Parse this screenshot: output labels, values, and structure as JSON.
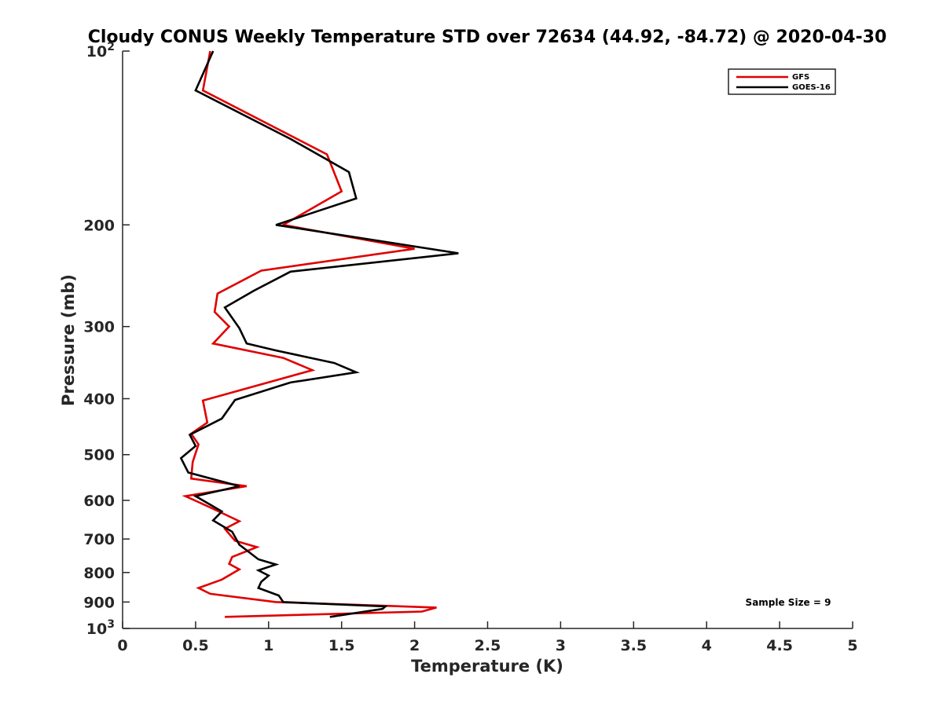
{
  "chart_data": {
    "type": "line",
    "title": "Cloudy CONUS Weekly Temperature STD over 72634 (44.92, -84.72) @ 2020-04-30",
    "xlabel": "Temperature (K)",
    "ylabel": "Pressure (mb)",
    "xlim": [
      0,
      5
    ],
    "ylim": [
      100,
      1000
    ],
    "y_scale": "log",
    "y_reversed": true,
    "x_ticks": [
      "0",
      "0.5",
      "1",
      "1.5",
      "2",
      "2.5",
      "3",
      "3.5",
      "4",
      "4.5",
      "5"
    ],
    "x_tick_values": [
      0,
      0.5,
      1,
      1.5,
      2,
      2.5,
      3,
      3.5,
      4,
      4.5,
      5
    ],
    "y_ticks": [
      {
        "value": 100,
        "base": "10",
        "exp": "2"
      },
      {
        "value": 200,
        "label": "200"
      },
      {
        "value": 300,
        "label": "300"
      },
      {
        "value": 400,
        "label": "400"
      },
      {
        "value": 500,
        "label": "500"
      },
      {
        "value": 600,
        "label": "600"
      },
      {
        "value": 700,
        "label": "700"
      },
      {
        "value": 800,
        "label": "800"
      },
      {
        "value": 900,
        "label": "900"
      },
      {
        "value": 1000,
        "base": "10",
        "exp": "3"
      }
    ],
    "legend_position": "top-right",
    "grid": false,
    "annotation": "Sample Size = 9",
    "series": [
      {
        "name": "GFS",
        "color": "#e00000",
        "points": [
          [
            0.6,
            100
          ],
          [
            0.55,
            117
          ],
          [
            1.4,
            151
          ],
          [
            1.5,
            175
          ],
          [
            1.1,
            200
          ],
          [
            2.0,
            220
          ],
          [
            0.95,
            240
          ],
          [
            0.65,
            263
          ],
          [
            0.63,
            283
          ],
          [
            0.73,
            300
          ],
          [
            0.62,
            321
          ],
          [
            1.1,
            340
          ],
          [
            1.3,
            357
          ],
          [
            0.55,
            403
          ],
          [
            0.58,
            440
          ],
          [
            0.47,
            460
          ],
          [
            0.52,
            480
          ],
          [
            0.48,
            515
          ],
          [
            0.47,
            550
          ],
          [
            0.85,
            567
          ],
          [
            0.43,
            590
          ],
          [
            0.6,
            617
          ],
          [
            0.8,
            652
          ],
          [
            0.7,
            672
          ],
          [
            0.77,
            705
          ],
          [
            0.92,
            723
          ],
          [
            0.75,
            752
          ],
          [
            0.73,
            773
          ],
          [
            0.8,
            790
          ],
          [
            0.68,
            823
          ],
          [
            0.52,
            851
          ],
          [
            0.6,
            871
          ],
          [
            1.05,
            900
          ],
          [
            2.15,
            920
          ],
          [
            2.05,
            935
          ],
          [
            0.7,
            955
          ]
        ]
      },
      {
        "name": "GOES-16",
        "color": "#000000",
        "points": [
          [
            0.62,
            100
          ],
          [
            0.5,
            117
          ],
          [
            1.15,
            142
          ],
          [
            1.55,
            162
          ],
          [
            1.6,
            180
          ],
          [
            1.05,
            200
          ],
          [
            2.3,
            224
          ],
          [
            1.15,
            241
          ],
          [
            0.9,
            260
          ],
          [
            0.7,
            278
          ],
          [
            0.8,
            302
          ],
          [
            0.85,
            321
          ],
          [
            1.05,
            330
          ],
          [
            1.45,
            347
          ],
          [
            1.6,
            360
          ],
          [
            1.15,
            375
          ],
          [
            0.77,
            402
          ],
          [
            0.68,
            433
          ],
          [
            0.46,
            462
          ],
          [
            0.5,
            483
          ],
          [
            0.4,
            507
          ],
          [
            0.45,
            537
          ],
          [
            0.8,
            567
          ],
          [
            0.5,
            590
          ],
          [
            0.68,
            627
          ],
          [
            0.62,
            650
          ],
          [
            0.75,
            680
          ],
          [
            0.8,
            716
          ],
          [
            0.93,
            759
          ],
          [
            1.05,
            775
          ],
          [
            0.93,
            793
          ],
          [
            1.0,
            810
          ],
          [
            0.95,
            830
          ],
          [
            0.93,
            851
          ],
          [
            1.07,
            877
          ],
          [
            1.1,
            900
          ],
          [
            1.8,
            916
          ],
          [
            1.78,
            925
          ],
          [
            1.42,
            955
          ]
        ]
      }
    ]
  }
}
